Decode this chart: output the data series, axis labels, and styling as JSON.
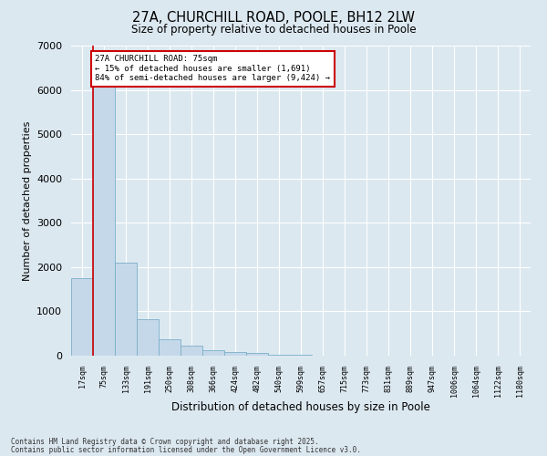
{
  "title_line1": "27A, CHURCHILL ROAD, POOLE, BH12 2LW",
  "title_line2": "Size of property relative to detached houses in Poole",
  "xlabel": "Distribution of detached houses by size in Poole",
  "ylabel": "Number of detached properties",
  "categories": [
    "17sqm",
    "75sqm",
    "133sqm",
    "191sqm",
    "250sqm",
    "308sqm",
    "366sqm",
    "424sqm",
    "482sqm",
    "540sqm",
    "599sqm",
    "657sqm",
    "715sqm",
    "773sqm",
    "831sqm",
    "889sqm",
    "947sqm",
    "1006sqm",
    "1064sqm",
    "1122sqm",
    "1180sqm"
  ],
  "values": [
    1750,
    6200,
    2100,
    820,
    380,
    220,
    130,
    80,
    55,
    30,
    15,
    8,
    5,
    3,
    2,
    1,
    1,
    0,
    0,
    0,
    0
  ],
  "bar_color": "#c5d8ea",
  "bar_edge_color": "#7aafc8",
  "property_line_x": 1,
  "property_line_color": "#cc0000",
  "annotation_text": "27A CHURCHILL ROAD: 75sqm\n← 15% of detached houses are smaller (1,691)\n84% of semi-detached houses are larger (9,424) →",
  "annotation_box_color": "#cc0000",
  "ylim": [
    0,
    7000
  ],
  "yticks": [
    0,
    1000,
    2000,
    3000,
    4000,
    5000,
    6000,
    7000
  ],
  "footer_line1": "Contains HM Land Registry data © Crown copyright and database right 2025.",
  "footer_line2": "Contains public sector information licensed under the Open Government Licence v3.0.",
  "bg_color": "#dce8f0",
  "plot_bg_color": "#dce8f0"
}
